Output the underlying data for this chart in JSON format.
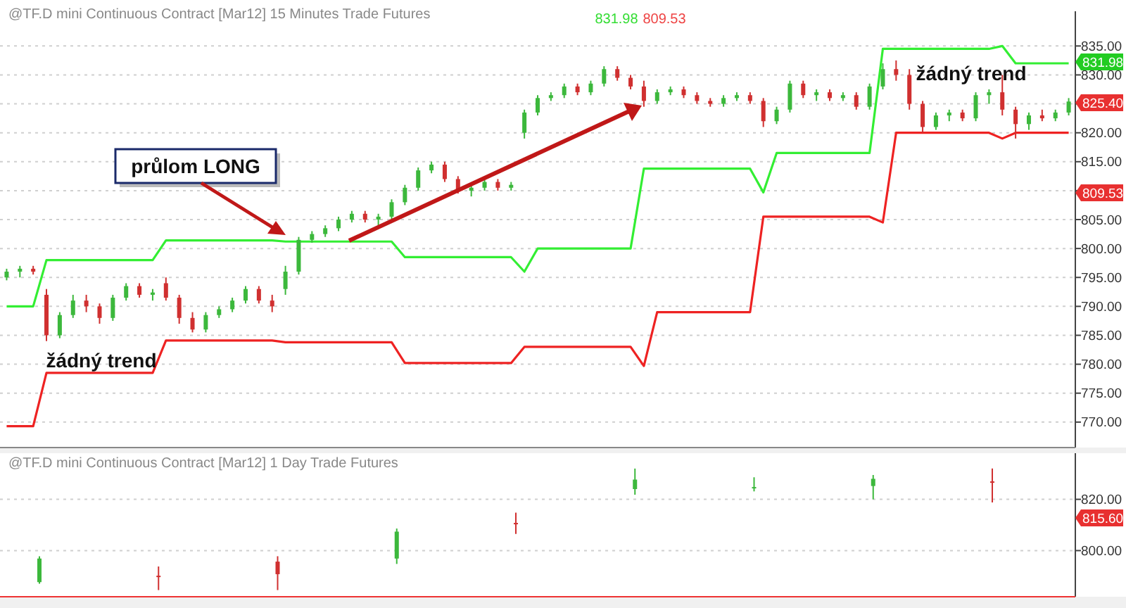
{
  "chart_data": [
    {
      "type": "candlestick",
      "title": "@TF.D  mini Continuous Contract [Mar12]  15 Minutes  Trade  Futures",
      "tick_labels": "y",
      "grid": "y",
      "categories": [
        null,
        null,
        null,
        null,
        null,
        null,
        null,
        null,
        null,
        null,
        null,
        null,
        null,
        null,
        null,
        null,
        null,
        null,
        null,
        null,
        null,
        null,
        null,
        null,
        null,
        null,
        null,
        null,
        null,
        null,
        null,
        null,
        null,
        null,
        null,
        null,
        null,
        null,
        null,
        null,
        null,
        null,
        null,
        null,
        null,
        null,
        null,
        null,
        null,
        null,
        null,
        null,
        null,
        null,
        null,
        null,
        null,
        null,
        null,
        null,
        null,
        null,
        null,
        null,
        null,
        null,
        null,
        null,
        null,
        null,
        null,
        null,
        null,
        null,
        null,
        null,
        null,
        null,
        null,
        null,
        null
      ],
      "ohlc": [
        [
          795,
          796.5,
          794.5,
          796
        ],
        [
          796,
          797,
          795,
          796.5
        ],
        [
          796.5,
          797,
          795.5,
          796
        ],
        [
          792,
          793,
          784,
          785
        ],
        [
          785,
          789,
          784.5,
          788.5
        ],
        [
          788.5,
          792,
          788,
          791
        ],
        [
          791,
          792,
          789,
          790
        ],
        [
          790,
          790.5,
          787,
          788
        ],
        [
          788,
          792,
          787.5,
          791.5
        ],
        [
          791.5,
          794,
          791,
          793.5
        ],
        [
          793.5,
          794,
          791.5,
          792
        ],
        [
          792,
          793,
          791,
          792.4
        ],
        [
          794,
          795,
          791,
          791.5
        ],
        [
          791.5,
          792,
          787,
          788
        ],
        [
          788,
          789,
          785.5,
          786
        ],
        [
          786,
          789,
          785.5,
          788.5
        ],
        [
          788.5,
          790,
          788,
          789.5
        ],
        [
          789.5,
          791.5,
          789,
          791
        ],
        [
          791,
          793.5,
          790.5,
          793
        ],
        [
          793,
          793.5,
          790.5,
          791
        ],
        [
          791,
          792,
          789,
          790
        ],
        [
          793,
          797,
          792,
          796
        ],
        [
          796,
          802,
          795.5,
          801.5
        ],
        [
          801.5,
          803,
          801,
          802.5
        ],
        [
          802.5,
          804,
          802,
          803.5
        ],
        [
          803.5,
          805.5,
          803,
          805
        ],
        [
          805,
          806.5,
          804.5,
          806
        ],
        [
          806,
          806.5,
          804.5,
          805
        ],
        [
          805,
          806,
          804,
          805.5
        ],
        [
          805.5,
          808.5,
          805,
          808
        ],
        [
          808,
          811,
          807.5,
          810.5
        ],
        [
          810.5,
          814,
          810,
          813.5
        ],
        [
          813.5,
          815,
          813,
          814.5
        ],
        [
          814.5,
          815,
          811.5,
          812
        ],
        [
          812,
          812.5,
          809.5,
          810
        ],
        [
          810,
          811,
          809,
          810.5
        ],
        [
          810.5,
          812,
          810,
          811.5
        ],
        [
          811.5,
          812,
          810,
          810.5
        ],
        [
          810.5,
          811.5,
          810,
          811
        ],
        [
          820,
          824,
          819,
          823.5
        ],
        [
          823.5,
          826.5,
          823,
          826
        ],
        [
          826,
          827,
          825.5,
          826.5
        ],
        [
          826.5,
          828.5,
          826,
          828
        ],
        [
          828,
          828.5,
          826.5,
          827
        ],
        [
          827,
          829,
          826.5,
          828.5
        ],
        [
          828.5,
          831.5,
          828,
          831
        ],
        [
          831,
          831.5,
          829,
          829.5
        ],
        [
          829.5,
          830,
          827.5,
          828
        ],
        [
          828,
          829,
          824.5,
          825.5
        ],
        [
          825.5,
          827.5,
          825,
          827
        ],
        [
          827,
          828,
          826.5,
          827.5
        ],
        [
          827.5,
          828,
          826,
          826.5
        ],
        [
          826.5,
          827,
          825,
          825.5
        ],
        [
          825.5,
          826,
          824.5,
          825
        ],
        [
          825,
          826.5,
          824.5,
          826
        ],
        [
          826,
          827,
          825.5,
          826.5
        ],
        [
          826.5,
          827,
          825,
          825.5
        ],
        [
          825.5,
          826,
          821,
          822
        ],
        [
          822,
          824.5,
          821.5,
          824
        ],
        [
          824,
          829,
          823.5,
          828.5
        ],
        [
          828.5,
          829,
          826,
          826.5
        ],
        [
          826.5,
          827.5,
          825.5,
          827
        ],
        [
          827,
          827.5,
          825.5,
          826
        ],
        [
          826,
          827,
          825.5,
          826.5
        ],
        [
          826.5,
          827,
          824,
          824.5
        ],
        [
          824.5,
          828.5,
          824,
          828
        ],
        [
          828,
          832,
          827.5,
          831
        ],
        [
          831,
          832.5,
          829,
          830
        ],
        [
          830,
          831,
          824,
          825
        ],
        [
          825,
          825.5,
          820,
          821
        ],
        [
          821,
          823.5,
          820.5,
          823
        ],
        [
          823,
          824,
          822,
          823.5
        ],
        [
          823.5,
          824,
          822,
          822.5
        ],
        [
          822.5,
          827,
          822,
          826.5
        ],
        [
          826.5,
          827.5,
          825,
          827
        ],
        [
          827,
          830,
          823,
          824
        ],
        [
          824,
          824.5,
          819,
          821.5
        ],
        [
          821.5,
          823.5,
          820.5,
          823
        ],
        [
          823,
          824,
          822,
          822.5
        ],
        [
          822.5,
          824,
          822,
          823.5
        ],
        [
          823.5,
          826,
          823,
          825.4
        ]
      ],
      "series": [
        {
          "type": "line",
          "color": "#33ee33",
          "values": [
            790,
            790,
            790,
            798,
            798,
            798,
            798,
            798,
            798,
            798,
            798,
            798,
            801.4,
            801.4,
            801.4,
            801.4,
            801.4,
            801.4,
            801.4,
            801.4,
            801.4,
            801.2,
            801.2,
            801.2,
            801.2,
            801.2,
            801.2,
            801.2,
            801.2,
            801.2,
            798.5,
            798.5,
            798.5,
            798.5,
            798.5,
            798.5,
            798.5,
            798.5,
            798.5,
            796,
            800,
            800,
            800,
            800,
            800,
            800,
            800,
            800,
            813.8,
            813.8,
            813.8,
            813.8,
            813.8,
            813.8,
            813.8,
            813.8,
            813.8,
            809.7,
            816.5,
            816.5,
            816.5,
            816.5,
            816.5,
            816.5,
            816.5,
            816.5,
            834.5,
            834.5,
            834.5,
            834.5,
            834.5,
            834.5,
            834.5,
            834.5,
            834.5,
            835,
            832,
            832,
            832,
            832,
            832
          ]
        },
        {
          "type": "line",
          "color": "#ee2222",
          "values": [
            769.3,
            769.3,
            769.3,
            778.5,
            778.5,
            778.5,
            778.5,
            778.5,
            778.5,
            778.5,
            778.5,
            778.5,
            784.1,
            784.1,
            784.1,
            784.1,
            784.1,
            784.1,
            784.1,
            784.1,
            784.1,
            783.8,
            783.8,
            783.8,
            783.8,
            783.8,
            783.8,
            783.8,
            783.8,
            783.8,
            780.2,
            780.2,
            780.2,
            780.2,
            780.2,
            780.2,
            780.2,
            780.2,
            780.2,
            783,
            783,
            783,
            783,
            783,
            783,
            783,
            783,
            783,
            779.7,
            789,
            789,
            789,
            789,
            789,
            789,
            789,
            789,
            805.5,
            805.5,
            805.5,
            805.5,
            805.5,
            805.5,
            805.5,
            805.5,
            805.5,
            804.5,
            820,
            820,
            820,
            820,
            820,
            820,
            820,
            820,
            819,
            820,
            820,
            820,
            820,
            820
          ]
        }
      ],
      "ylim": [
        765.6,
        841
      ],
      "yticks": [
        {
          "value": 770,
          "label": "770.00"
        },
        {
          "value": 775,
          "label": "775.00"
        },
        {
          "value": 780,
          "label": "780.00"
        },
        {
          "value": 785,
          "label": "785.00"
        },
        {
          "value": 790,
          "label": "790.00"
        },
        {
          "value": 795,
          "label": "795.00"
        },
        {
          "value": 800,
          "label": "800.00"
        },
        {
          "value": 805,
          "label": "805.00"
        },
        {
          "value": 810,
          "label": null
        },
        {
          "value": 815,
          "label": "815.00"
        },
        {
          "value": 820,
          "label": "820.00"
        },
        {
          "value": 825,
          "label": null
        },
        {
          "value": 830,
          "label": "830.00"
        },
        {
          "value": 835,
          "label": "835.00"
        }
      ],
      "annotations": [
        "průlom LONG",
        "žádný trend",
        "žádný trend",
        "831.98",
        "809.53",
        "831.98",
        "825.40",
        "809.53"
      ]
    },
    {
      "type": "candlestick",
      "title": "@TF.D  mini Continuous Contract [Mar12]  1 Day  Trade  Futures",
      "tick_labels": "y",
      "grid": "y",
      "categories": [
        null,
        null,
        null,
        null,
        null,
        null,
        null,
        null,
        null
      ],
      "ohlc": [
        [
          787.7,
          797.8,
          787.1,
          796.9
        ],
        [
          790.2,
          793.8,
          784.6,
          790
        ],
        [
          795.7,
          797.8,
          784.6,
          790.8
        ],
        [
          796.9,
          808.6,
          794.8,
          807.4
        ],
        [
          810.8,
          814.8,
          806.5,
          810.6
        ],
        [
          824,
          832,
          821.8,
          827.7
        ],
        [
          824.6,
          828.6,
          823.1,
          824.8
        ],
        [
          825.2,
          829.5,
          820,
          828
        ],
        [
          827,
          832,
          818.8,
          826.8
        ]
      ],
      "ylim": [
        782,
        838
      ],
      "yticks": [
        {
          "value": 800,
          "label": "800.00"
        },
        {
          "value": 820,
          "label": "820.00"
        }
      ],
      "annotations": [
        "815.60"
      ]
    }
  ]
}
